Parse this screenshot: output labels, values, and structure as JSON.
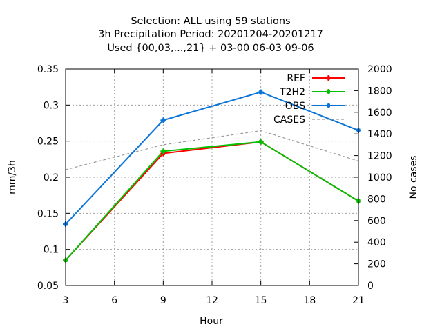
{
  "chart_data": {
    "type": "line",
    "title_lines": [
      "Selection: ALL using    59 stations",
      "3h Precipitation    Period: 20201204-20201217",
      "Used {00,03,...,21} + 03-00 06-03 09-06"
    ],
    "xlabel": "Hour",
    "ylabel": "mm/3h",
    "y2label": "No cases",
    "xlim": [
      3,
      21
    ],
    "ylim": [
      0.05,
      0.35
    ],
    "y2lim": [
      0,
      2000
    ],
    "xticks": [
      "3",
      "6",
      "9",
      "12",
      "15",
      "18",
      "21"
    ],
    "yticks": [
      "0.05",
      "0.1",
      "0.15",
      "0.2",
      "0.25",
      "0.3",
      "0.35"
    ],
    "y2ticks": [
      "0",
      "200",
      "400",
      "600",
      "800",
      "1000",
      "1200",
      "1400",
      "1600",
      "1800",
      "2000"
    ],
    "grid": true,
    "legend_position": "top-right",
    "x": [
      3,
      9,
      15,
      21
    ],
    "series": [
      {
        "name": "REF",
        "color": "#ff0000",
        "axis": "left",
        "marker": "plus",
        "values": [
          0.085,
          0.233,
          0.249,
          0.167
        ]
      },
      {
        "name": "T2H2",
        "color": "#00c000",
        "axis": "left",
        "marker": "plus",
        "values": [
          0.085,
          0.236,
          0.249,
          0.167
        ]
      },
      {
        "name": "OBS",
        "color": "#0a74d8",
        "axis": "left",
        "marker": "plus",
        "values": [
          0.135,
          0.279,
          0.318,
          0.265
        ]
      },
      {
        "name": "CASES",
        "color": "#999999",
        "axis": "right",
        "marker": "none",
        "dashed": true,
        "values": [
          1070,
          1300,
          1430,
          1150
        ]
      }
    ]
  }
}
